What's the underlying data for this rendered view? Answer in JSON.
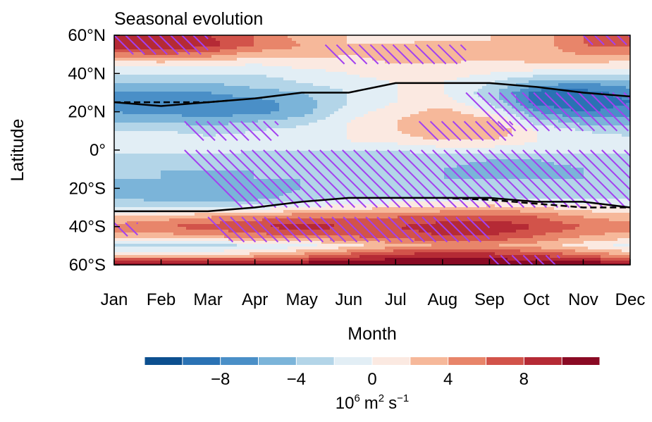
{
  "chart_data": {
    "type": "heatmap",
    "title": "Seasonal evolution",
    "xlabel": "Month",
    "ylabel": "Latitude",
    "x_ticks": [
      "Jan",
      "Feb",
      "Mar",
      "Apr",
      "May",
      "Jun",
      "Jul",
      "Aug",
      "Sep",
      "Oct",
      "Nov",
      "Dec"
    ],
    "y_ticks": [
      "60°N",
      "40°N",
      "20°N",
      "0°",
      "20°S",
      "40°S",
      "60°S"
    ],
    "y_tick_values": [
      60,
      40,
      20,
      0,
      -20,
      -40,
      -60
    ],
    "ylim": [
      -60,
      60
    ],
    "colorbar": {
      "unit_base": "10",
      "unit_exp": "6",
      "unit_m": "m",
      "unit_m_exp": "2",
      "unit_s": "s",
      "unit_s_exp": "−1",
      "levels": [
        -12,
        -10,
        -8,
        -6,
        -4,
        -2,
        0,
        2,
        4,
        6,
        8,
        10,
        12
      ],
      "tick_labels": [
        "−8",
        "−4",
        "0",
        "4",
        "8"
      ],
      "tick_values": [
        -8,
        -4,
        0,
        4,
        8
      ],
      "colors": [
        "#0c4f8f",
        "#2a72b4",
        "#4a8fc7",
        "#7bb4d9",
        "#b3d5e8",
        "#e2eef5",
        "#fbe9e1",
        "#f6b89a",
        "#e8856a",
        "#d2534a",
        "#b52a35",
        "#8a0a24"
      ]
    },
    "field": {
      "lat": [
        60,
        55,
        50,
        45,
        40,
        35,
        30,
        25,
        20,
        15,
        10,
        5,
        0,
        -5,
        -10,
        -15,
        -20,
        -25,
        -30,
        -35,
        -40,
        -45,
        -50,
        -55,
        -60
      ],
      "rows": [
        [
          9,
          9,
          8,
          6,
          3,
          2,
          1,
          1,
          2,
          3,
          6,
          7
        ],
        [
          10,
          10,
          9,
          6,
          4,
          2,
          2,
          3,
          2,
          3,
          6,
          7
        ],
        [
          5,
          6,
          5,
          3,
          3,
          2,
          3,
          4,
          3,
          3,
          4,
          4
        ],
        [
          1,
          1,
          1,
          0,
          1,
          1,
          2,
          2,
          1,
          2,
          2,
          1
        ],
        [
          -2,
          -2,
          -2,
          -2,
          -1,
          0,
          1,
          1,
          0,
          -1,
          -1,
          -1
        ],
        [
          -4,
          -4,
          -4,
          -3,
          -2,
          -1,
          0,
          0,
          -2,
          -5,
          -6,
          -5
        ],
        [
          -6,
          -6,
          -6,
          -5,
          -4,
          -2,
          0,
          0,
          -3,
          -9,
          -9,
          -7
        ],
        [
          -7,
          -7,
          -7,
          -7,
          -5,
          -2,
          0,
          1,
          -2,
          -9,
          -10,
          -8
        ],
        [
          -6,
          -7,
          -7,
          -7,
          -5,
          -1,
          1,
          3,
          0,
          -6,
          -8,
          -7
        ],
        [
          -4,
          -4,
          -5,
          -4,
          -3,
          0,
          2,
          4,
          3,
          -3,
          -5,
          -5
        ],
        [
          -2,
          -2,
          -3,
          -2,
          -1,
          0,
          2,
          4,
          4,
          0,
          -2,
          -3
        ],
        [
          0,
          0,
          -1,
          -1,
          0,
          0,
          1,
          2,
          2,
          0,
          -1,
          -1
        ],
        [
          -1,
          -1,
          -1,
          -2,
          -2,
          -2,
          -2,
          -1,
          -1,
          -1,
          -1,
          -1
        ],
        [
          -3,
          -3,
          -3,
          -3,
          -3,
          -3,
          -3,
          -3,
          -4,
          -4,
          -3,
          -3
        ],
        [
          -4,
          -4,
          -4,
          -4,
          -4,
          -4,
          -4,
          -4,
          -5,
          -5,
          -4,
          -4
        ],
        [
          -4,
          -4,
          -5,
          -4,
          -4,
          -4,
          -4,
          -4,
          -4,
          -4,
          -4,
          -4
        ],
        [
          -4,
          -5,
          -6,
          -5,
          -4,
          -3,
          -3,
          -3,
          -3,
          -3,
          -3,
          -3
        ],
        [
          -4,
          -5,
          -6,
          -5,
          -3,
          -2,
          -2,
          -2,
          -2,
          -2,
          -2,
          -2
        ],
        [
          -2,
          -2,
          -2,
          -1,
          0,
          1,
          2,
          2,
          3,
          2,
          1,
          0
        ],
        [
          2,
          3,
          4,
          5,
          6,
          6,
          6,
          7,
          7,
          6,
          4,
          3
        ],
        [
          5,
          6,
          7,
          8,
          9,
          8,
          8,
          9,
          10,
          8,
          6,
          5
        ],
        [
          3,
          3,
          4,
          5,
          6,
          6,
          7,
          8,
          8,
          6,
          4,
          3
        ],
        [
          -3,
          -3,
          -3,
          -2,
          -1,
          1,
          3,
          4,
          4,
          3,
          1,
          -1
        ],
        [
          2,
          2,
          2,
          3,
          5,
          7,
          9,
          9,
          9,
          8,
          6,
          4
        ],
        [
          12,
          12,
          12,
          12,
          12,
          12,
          12,
          12,
          12,
          12,
          12,
          12
        ]
      ]
    },
    "jet_north_solid": [
      [
        1,
        25
      ],
      [
        2,
        23
      ],
      [
        3,
        25
      ],
      [
        4,
        27
      ],
      [
        5,
        30
      ],
      [
        6,
        30
      ],
      [
        7,
        35
      ],
      [
        8,
        35
      ],
      [
        9,
        35
      ],
      [
        10,
        33
      ],
      [
        11,
        30
      ],
      [
        12,
        28
      ]
    ],
    "jet_north_dashed": [
      [
        1,
        25
      ],
      [
        2,
        25
      ],
      [
        3,
        25
      ],
      [
        3.5,
        26
      ]
    ],
    "jet_south_solid": [
      [
        1,
        -32
      ],
      [
        2,
        -32
      ],
      [
        3,
        -32
      ],
      [
        4,
        -30
      ],
      [
        5,
        -27
      ],
      [
        6,
        -25
      ],
      [
        7,
        -25
      ],
      [
        8,
        -25
      ],
      [
        9,
        -25
      ],
      [
        10,
        -27
      ],
      [
        11,
        -27
      ],
      [
        12,
        -30
      ]
    ],
    "jet_south_dashed": [
      [
        8,
        -25
      ],
      [
        9,
        -26
      ],
      [
        10,
        -28
      ],
      [
        11,
        -30
      ],
      [
        12,
        -30
      ]
    ],
    "hatch_regions": [
      {
        "x": [
          1,
          3
        ],
        "lat": [
          60,
          50
        ]
      },
      {
        "x": [
          5.5,
          8.5
        ],
        "lat": [
          55,
          45
        ]
      },
      {
        "x": [
          11,
          12
        ],
        "lat": [
          60,
          55
        ]
      },
      {
        "x": [
          2.5,
          4.5
        ],
        "lat": [
          15,
          5
        ]
      },
      {
        "x": [
          8.5,
          12
        ],
        "lat": [
          30,
          10
        ]
      },
      {
        "x": [
          7.5,
          9.5
        ],
        "lat": [
          15,
          5
        ]
      },
      {
        "x": [
          2.5,
          12
        ],
        "lat": [
          0,
          -30
        ]
      },
      {
        "x": [
          1,
          1.5
        ],
        "lat": [
          -38,
          -45
        ]
      },
      {
        "x": [
          3,
          9
        ],
        "lat": [
          -35,
          -48
        ]
      },
      {
        "x": [
          9,
          10.5
        ],
        "lat": [
          -55,
          -62
        ]
      }
    ]
  }
}
